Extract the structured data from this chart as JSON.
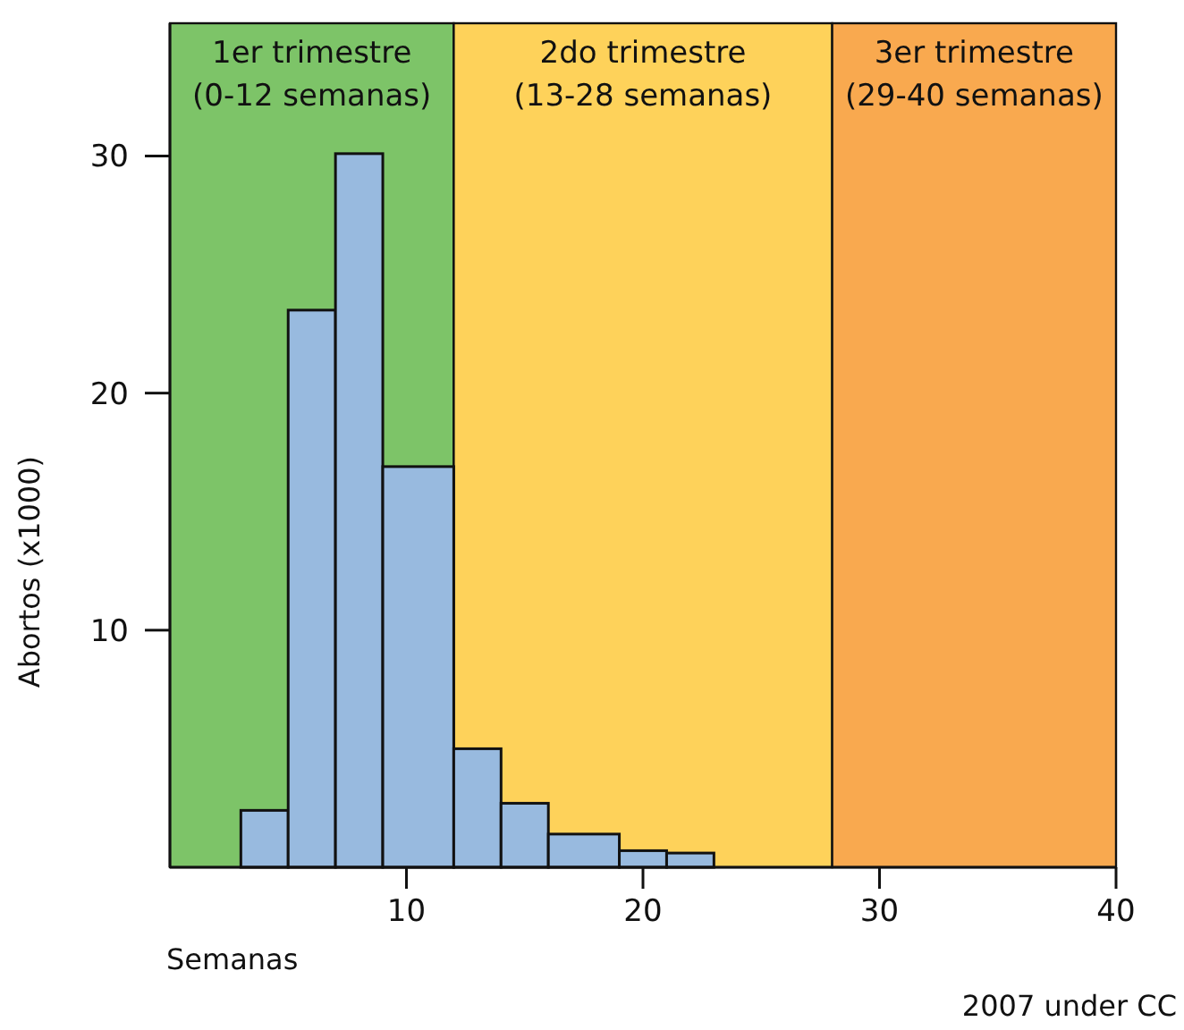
{
  "chart_data": {
    "type": "histogram",
    "xlabel": "Semanas",
    "ylabel": "Abortos (x1000)",
    "bins": [
      3,
      5,
      7,
      9,
      12,
      14,
      16,
      19,
      21,
      23
    ],
    "values": [
      2.4,
      23.5,
      30.1,
      16.9,
      5.0,
      2.7,
      1.4,
      0.7,
      0.6
    ],
    "color": "#98badf",
    "xlim": [
      0,
      40
    ],
    "xticks": [
      10,
      20,
      30,
      40
    ],
    "ylim": [
      0,
      35.6
    ],
    "yticks": [
      10,
      20,
      30
    ],
    "grid": false,
    "bands": [
      {
        "axis": "x",
        "from": 0,
        "to": 12,
        "label": "1er trimestre\n(0-12 semanas)",
        "color": "#7dc468"
      },
      {
        "axis": "x",
        "from": 12,
        "to": 28,
        "label": "2do trimestre\n(13-28 semanas)",
        "color": "#fed25a"
      },
      {
        "axis": "x",
        "from": 28,
        "to": 40,
        "label": "3er trimestre\n(29-40 semanas)",
        "color": "#f9a94f"
      }
    ],
    "annotations": [
      "2007 under CC"
    ]
  }
}
